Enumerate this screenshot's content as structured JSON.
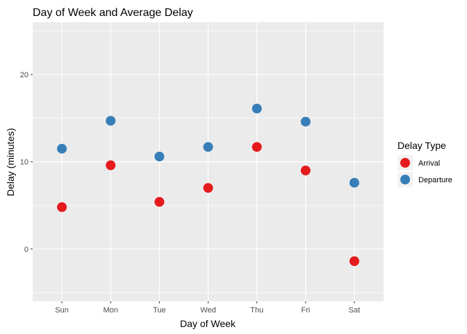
{
  "chart_data": {
    "type": "scatter",
    "title": "Day of Week and Average Delay",
    "xlabel": "Day of Week",
    "ylabel": "Delay (minutes)",
    "categories": [
      "Sun",
      "Mon",
      "Tue",
      "Wed",
      "Thu",
      "Fri",
      "Sat"
    ],
    "ylim": [
      -6,
      26
    ],
    "yticks": [
      0,
      10,
      20
    ],
    "grid": true,
    "legend": {
      "title": "Delay Type",
      "placement": "right"
    },
    "series": [
      {
        "name": "Arrival",
        "color": "#E41A1C",
        "values": [
          4.8,
          9.6,
          5.4,
          7.0,
          11.7,
          9.0,
          -1.4
        ]
      },
      {
        "name": "Departure",
        "color": "#377EB8",
        "values": [
          11.5,
          14.7,
          10.6,
          11.7,
          16.1,
          14.6,
          7.6
        ]
      }
    ]
  }
}
